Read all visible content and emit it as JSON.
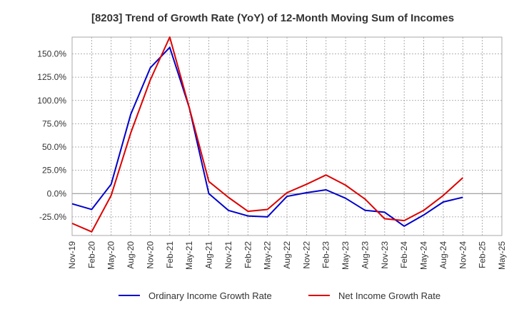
{
  "chart_data": {
    "type": "line",
    "title": "[8203]  Trend of Growth Rate (YoY) of 12-Month Moving Sum of Incomes",
    "xlabel": "",
    "ylabel": "",
    "ylim": [
      -45,
      168
    ],
    "x_tick_labels": [
      "Nov-19",
      "Feb-20",
      "May-20",
      "Aug-20",
      "Nov-20",
      "Feb-21",
      "May-21",
      "Aug-21",
      "Nov-21",
      "Feb-22",
      "May-22",
      "Aug-22",
      "Nov-22",
      "Feb-23",
      "May-23",
      "Aug-23",
      "Nov-23",
      "Feb-24",
      "May-24",
      "Aug-24",
      "Nov-24",
      "Feb-25",
      "May-25"
    ],
    "y_ticks": [
      -25,
      0,
      25,
      50,
      75,
      100,
      125,
      150
    ],
    "y_tick_labels": [
      "-25.0%",
      "0.0%",
      "25.0%",
      "50.0%",
      "75.0%",
      "100.0%",
      "125.0%",
      "150.0%"
    ],
    "grid": true,
    "legend_position": "bottom",
    "series": [
      {
        "name": "Ordinary Income Growth Rate",
        "color": "#0000cc",
        "values": [
          -11,
          -17,
          10,
          85,
          135,
          157,
          92,
          0,
          -18,
          -24,
          -25,
          -3,
          1,
          4,
          -5,
          -18,
          -20,
          -35,
          -23,
          -9,
          -4,
          null,
          null
        ]
      },
      {
        "name": "Net Income Growth Rate",
        "color": "#dd0000",
        "values": [
          -32,
          -41,
          -2,
          65,
          122,
          168,
          92,
          13,
          -4,
          -19,
          -17,
          1,
          10,
          20,
          9,
          -6,
          -27,
          -29,
          -18,
          -2,
          17,
          null,
          null
        ]
      }
    ]
  }
}
